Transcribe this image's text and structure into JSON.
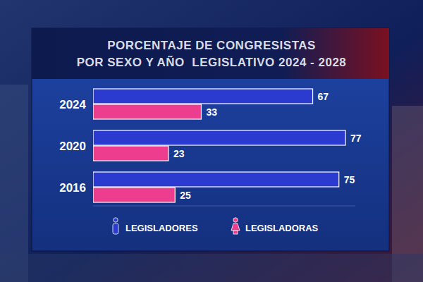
{
  "chart_data": {
    "type": "bar",
    "orientation": "horizontal",
    "title": "PORCENTAJE DE CONGRESISTAS POR SEXO Y AÑO  LEGISLATIVO 2024 - 2028",
    "categories": [
      "2024",
      "2020",
      "2016"
    ],
    "series": [
      {
        "name": "LEGISLADORES",
        "color": "#2b3bd0",
        "values": [
          67,
          77,
          75
        ]
      },
      {
        "name": "LEGISLADORAS",
        "color": "#ec3d8e",
        "values": [
          33,
          23,
          25
        ]
      }
    ],
    "xlim": [
      0,
      80
    ],
    "data_labels": true,
    "tick_labels": "y",
    "legend": "bottom"
  }
}
